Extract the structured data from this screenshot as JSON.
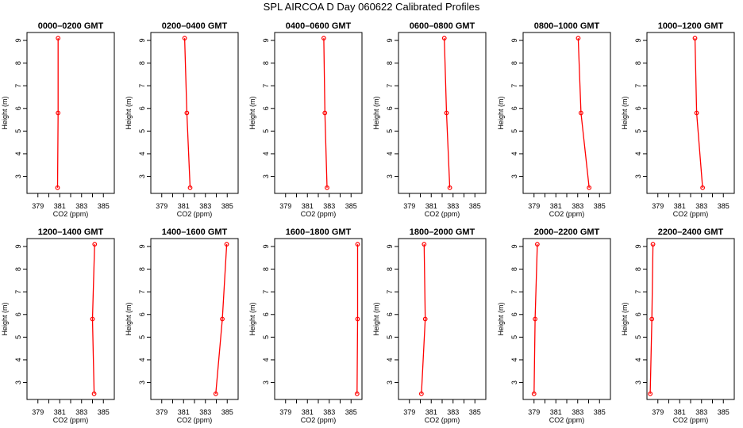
{
  "figure": {
    "title": "SPL AIRCOA D  Day 060622  Calibrated Profiles"
  },
  "colors": {
    "profile": "#ff0000",
    "axis": "#000000"
  },
  "chart_data": [
    {
      "type": "line",
      "title": "0000–0200 GMT",
      "xlabel": "CO2 (ppm)",
      "ylabel": "Height (m)",
      "xlim": [
        378,
        386
      ],
      "ylim": [
        2.25,
        9.35
      ],
      "xticks": [
        379,
        380,
        381,
        382,
        383,
        384,
        385
      ],
      "xtick_labels": [
        "379",
        "",
        "381",
        "",
        "383",
        "",
        "385"
      ],
      "yticks": [
        3,
        4,
        5,
        6,
        7,
        8,
        9
      ],
      "series": [
        {
          "x": [
            380.85,
            380.85,
            380.8
          ],
          "y": [
            9.1,
            5.8,
            2.5
          ]
        }
      ]
    },
    {
      "type": "line",
      "title": "0200–0400 GMT",
      "xlabel": "CO2 (ppm)",
      "ylabel": "Height (m)",
      "xlim": [
        378,
        386
      ],
      "ylim": [
        2.25,
        9.35
      ],
      "xticks": [
        379,
        380,
        381,
        382,
        383,
        384,
        385
      ],
      "xtick_labels": [
        "379",
        "",
        "381",
        "",
        "383",
        "",
        "385"
      ],
      "yticks": [
        3,
        4,
        5,
        6,
        7,
        8,
        9
      ],
      "series": [
        {
          "x": [
            381.1,
            381.3,
            381.6
          ],
          "y": [
            9.1,
            5.8,
            2.5
          ]
        }
      ]
    },
    {
      "type": "line",
      "title": "0400–0600 GMT",
      "xlabel": "CO2 (ppm)",
      "ylabel": "Height (m)",
      "xlim": [
        378,
        386
      ],
      "ylim": [
        2.25,
        9.35
      ],
      "xticks": [
        379,
        380,
        381,
        382,
        383,
        384,
        385
      ],
      "xtick_labels": [
        "379",
        "",
        "381",
        "",
        "383",
        "",
        "385"
      ],
      "yticks": [
        3,
        4,
        5,
        6,
        7,
        8,
        9
      ],
      "series": [
        {
          "x": [
            382.5,
            382.6,
            382.8
          ],
          "y": [
            9.1,
            5.8,
            2.5
          ]
        }
      ]
    },
    {
      "type": "line",
      "title": "0600–0800 GMT",
      "xlabel": "CO2 (ppm)",
      "ylabel": "Height (m)",
      "xlim": [
        378,
        386
      ],
      "ylim": [
        2.25,
        9.35
      ],
      "xticks": [
        379,
        380,
        381,
        382,
        383,
        384,
        385
      ],
      "xtick_labels": [
        "379",
        "",
        "381",
        "",
        "383",
        "",
        "385"
      ],
      "yticks": [
        3,
        4,
        5,
        6,
        7,
        8,
        9
      ],
      "series": [
        {
          "x": [
            382.2,
            382.4,
            382.7
          ],
          "y": [
            9.1,
            5.8,
            2.5
          ]
        }
      ]
    },
    {
      "type": "line",
      "title": "0800–1000 GMT",
      "xlabel": "CO2 (ppm)",
      "ylabel": "Height (m)",
      "xlim": [
        378,
        386
      ],
      "ylim": [
        2.25,
        9.35
      ],
      "xticks": [
        379,
        380,
        381,
        382,
        383,
        384,
        385
      ],
      "xtick_labels": [
        "379",
        "",
        "381",
        "",
        "383",
        "",
        "385"
      ],
      "yticks": [
        3,
        4,
        5,
        6,
        7,
        8,
        9
      ],
      "series": [
        {
          "x": [
            383.05,
            383.3,
            384.05
          ],
          "y": [
            9.1,
            5.8,
            2.5
          ]
        }
      ]
    },
    {
      "type": "line",
      "title": "1000–1200 GMT",
      "xlabel": "CO2 (ppm)",
      "ylabel": "Height (m)",
      "xlim": [
        378,
        386
      ],
      "ylim": [
        2.25,
        9.35
      ],
      "xticks": [
        379,
        380,
        381,
        382,
        383,
        384,
        385
      ],
      "xtick_labels": [
        "379",
        "",
        "381",
        "",
        "383",
        "",
        "385"
      ],
      "yticks": [
        3,
        4,
        5,
        6,
        7,
        8,
        9
      ],
      "series": [
        {
          "x": [
            382.4,
            382.55,
            383.1
          ],
          "y": [
            9.1,
            5.8,
            2.5
          ]
        }
      ]
    },
    {
      "type": "line",
      "title": "1200–1400 GMT",
      "xlabel": "CO2 (ppm)",
      "ylabel": "Height (m)",
      "xlim": [
        378,
        386
      ],
      "ylim": [
        2.25,
        9.35
      ],
      "xticks": [
        379,
        380,
        381,
        382,
        383,
        384,
        385
      ],
      "xtick_labels": [
        "379",
        "",
        "381",
        "",
        "383",
        "",
        "385"
      ],
      "yticks": [
        3,
        4,
        5,
        6,
        7,
        8,
        9
      ],
      "series": [
        {
          "x": [
            384.2,
            384.0,
            384.15
          ],
          "y": [
            9.1,
            5.8,
            2.5
          ]
        }
      ]
    },
    {
      "type": "line",
      "title": "1400–1600 GMT",
      "xlabel": "CO2 (ppm)",
      "ylabel": "Height (m)",
      "xlim": [
        378,
        386
      ],
      "ylim": [
        2.25,
        9.35
      ],
      "xticks": [
        379,
        380,
        381,
        382,
        383,
        384,
        385
      ],
      "xtick_labels": [
        "379",
        "",
        "381",
        "",
        "383",
        "",
        "385"
      ],
      "yticks": [
        3,
        4,
        5,
        6,
        7,
        8,
        9
      ],
      "series": [
        {
          "x": [
            384.95,
            384.55,
            383.95
          ],
          "y": [
            9.1,
            5.8,
            2.5
          ]
        }
      ]
    },
    {
      "type": "line",
      "title": "1600–1800 GMT",
      "xlabel": "CO2 (ppm)",
      "ylabel": "Height (m)",
      "xlim": [
        378,
        386
      ],
      "ylim": [
        2.25,
        9.35
      ],
      "xticks": [
        379,
        380,
        381,
        382,
        383,
        384,
        385
      ],
      "xtick_labels": [
        "379",
        "",
        "381",
        "",
        "383",
        "",
        "385"
      ],
      "yticks": [
        3,
        4,
        5,
        6,
        7,
        8,
        9
      ],
      "series": [
        {
          "x": [
            385.6,
            385.6,
            385.55
          ],
          "y": [
            9.1,
            5.8,
            2.5
          ]
        }
      ]
    },
    {
      "type": "line",
      "title": "1800–2000 GMT",
      "xlabel": "CO2 (ppm)",
      "ylabel": "Height (m)",
      "xlim": [
        378,
        386
      ],
      "ylim": [
        2.25,
        9.35
      ],
      "xticks": [
        379,
        380,
        381,
        382,
        383,
        384,
        385
      ],
      "xtick_labels": [
        "379",
        "",
        "381",
        "",
        "383",
        "",
        "385"
      ],
      "yticks": [
        3,
        4,
        5,
        6,
        7,
        8,
        9
      ],
      "series": [
        {
          "x": [
            380.35,
            380.45,
            380.1
          ],
          "y": [
            9.1,
            5.8,
            2.5
          ]
        }
      ]
    },
    {
      "type": "line",
      "title": "2000–2200 GMT",
      "xlabel": "CO2 (ppm)",
      "ylabel": "Height (m)",
      "xlim": [
        378,
        386
      ],
      "ylim": [
        2.25,
        9.35
      ],
      "xticks": [
        379,
        380,
        381,
        382,
        383,
        384,
        385
      ],
      "xtick_labels": [
        "379",
        "",
        "381",
        "",
        "383",
        "",
        "385"
      ],
      "yticks": [
        3,
        4,
        5,
        6,
        7,
        8,
        9
      ],
      "series": [
        {
          "x": [
            379.3,
            379.1,
            379.0
          ],
          "y": [
            9.1,
            5.8,
            2.5
          ]
        }
      ]
    },
    {
      "type": "line",
      "title": "2200–2400 GMT",
      "xlabel": "CO2 (ppm)",
      "ylabel": "Height (m)",
      "xlim": [
        378,
        386
      ],
      "ylim": [
        2.25,
        9.35
      ],
      "xticks": [
        379,
        380,
        381,
        382,
        383,
        384,
        385
      ],
      "xtick_labels": [
        "379",
        "",
        "381",
        "",
        "383",
        "",
        "385"
      ],
      "yticks": [
        3,
        4,
        5,
        6,
        7,
        8,
        9
      ],
      "series": [
        {
          "x": [
            378.55,
            378.45,
            378.3
          ],
          "y": [
            9.1,
            5.8,
            2.5
          ]
        }
      ]
    }
  ]
}
